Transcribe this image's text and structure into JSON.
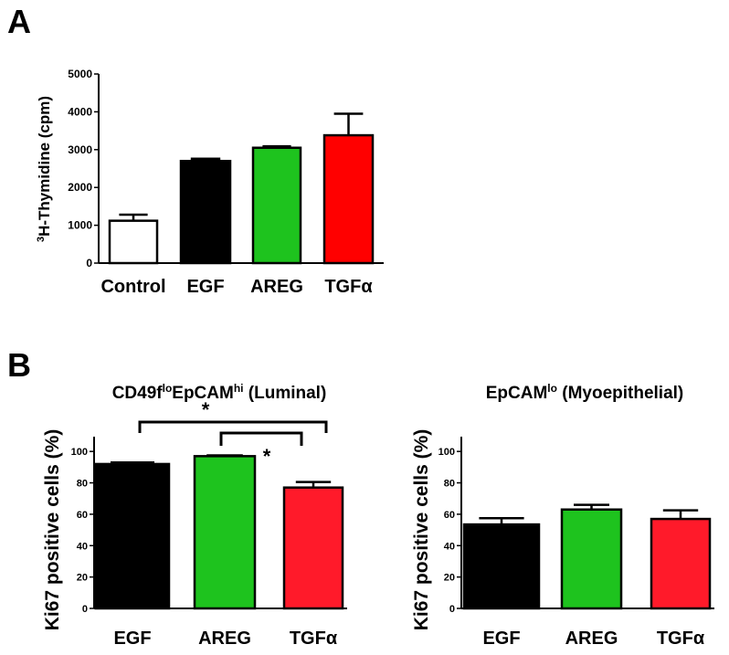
{
  "panels": {
    "a_label": "A",
    "b_label": "B"
  },
  "chart_data": [
    {
      "type": "bar",
      "panel": "A",
      "title": "",
      "ylabel_sup": "3",
      "ylabel": "H-Thymidine (cpm)",
      "categories": [
        "Control",
        "EGF",
        "AREG",
        "TGFα"
      ],
      "values": [
        1120,
        2700,
        3050,
        3380
      ],
      "error_upper": [
        1280,
        2760,
        3090,
        3950
      ],
      "colors": [
        "#ffffff",
        "#000000",
        "#1ec31e",
        "#ff0000"
      ],
      "ylim": [
        0,
        5000
      ],
      "yticks": [
        0,
        1000,
        2000,
        3000,
        4000,
        5000
      ]
    },
    {
      "type": "bar",
      "panel": "B-left",
      "title_parts": [
        "CD49f",
        "lo",
        "EpCAM",
        "hi",
        " (Luminal)"
      ],
      "ylabel": "Ki67 positive cells (%)",
      "categories": [
        "EGF",
        "AREG",
        "TGFα"
      ],
      "values": [
        92,
        97,
        77
      ],
      "error_upper": [
        93,
        97.5,
        80.5
      ],
      "colors": [
        "#000000",
        "#1ec31e",
        "#ff1a2a"
      ],
      "ylim": [
        0,
        110
      ],
      "yticks": [
        0,
        20,
        40,
        60,
        80,
        100
      ],
      "significance": [
        {
          "from": "EGF",
          "to": "TGFα",
          "label": "*"
        },
        {
          "from": "AREG",
          "to": "TGFα",
          "label": "*"
        }
      ]
    },
    {
      "type": "bar",
      "panel": "B-right",
      "title_parts": [
        "EpCAM",
        "lo",
        " (Myoepithelial)"
      ],
      "ylabel": "Ki67 positive cells (%)",
      "categories": [
        "EGF",
        "AREG",
        "TGFα"
      ],
      "values": [
        53.5,
        63,
        57
      ],
      "error_upper": [
        57.5,
        66,
        62.5
      ],
      "colors": [
        "#000000",
        "#1ec31e",
        "#ff1a2a"
      ],
      "ylim": [
        0,
        110
      ],
      "yticks": [
        0,
        20,
        40,
        60,
        80,
        100
      ]
    }
  ]
}
